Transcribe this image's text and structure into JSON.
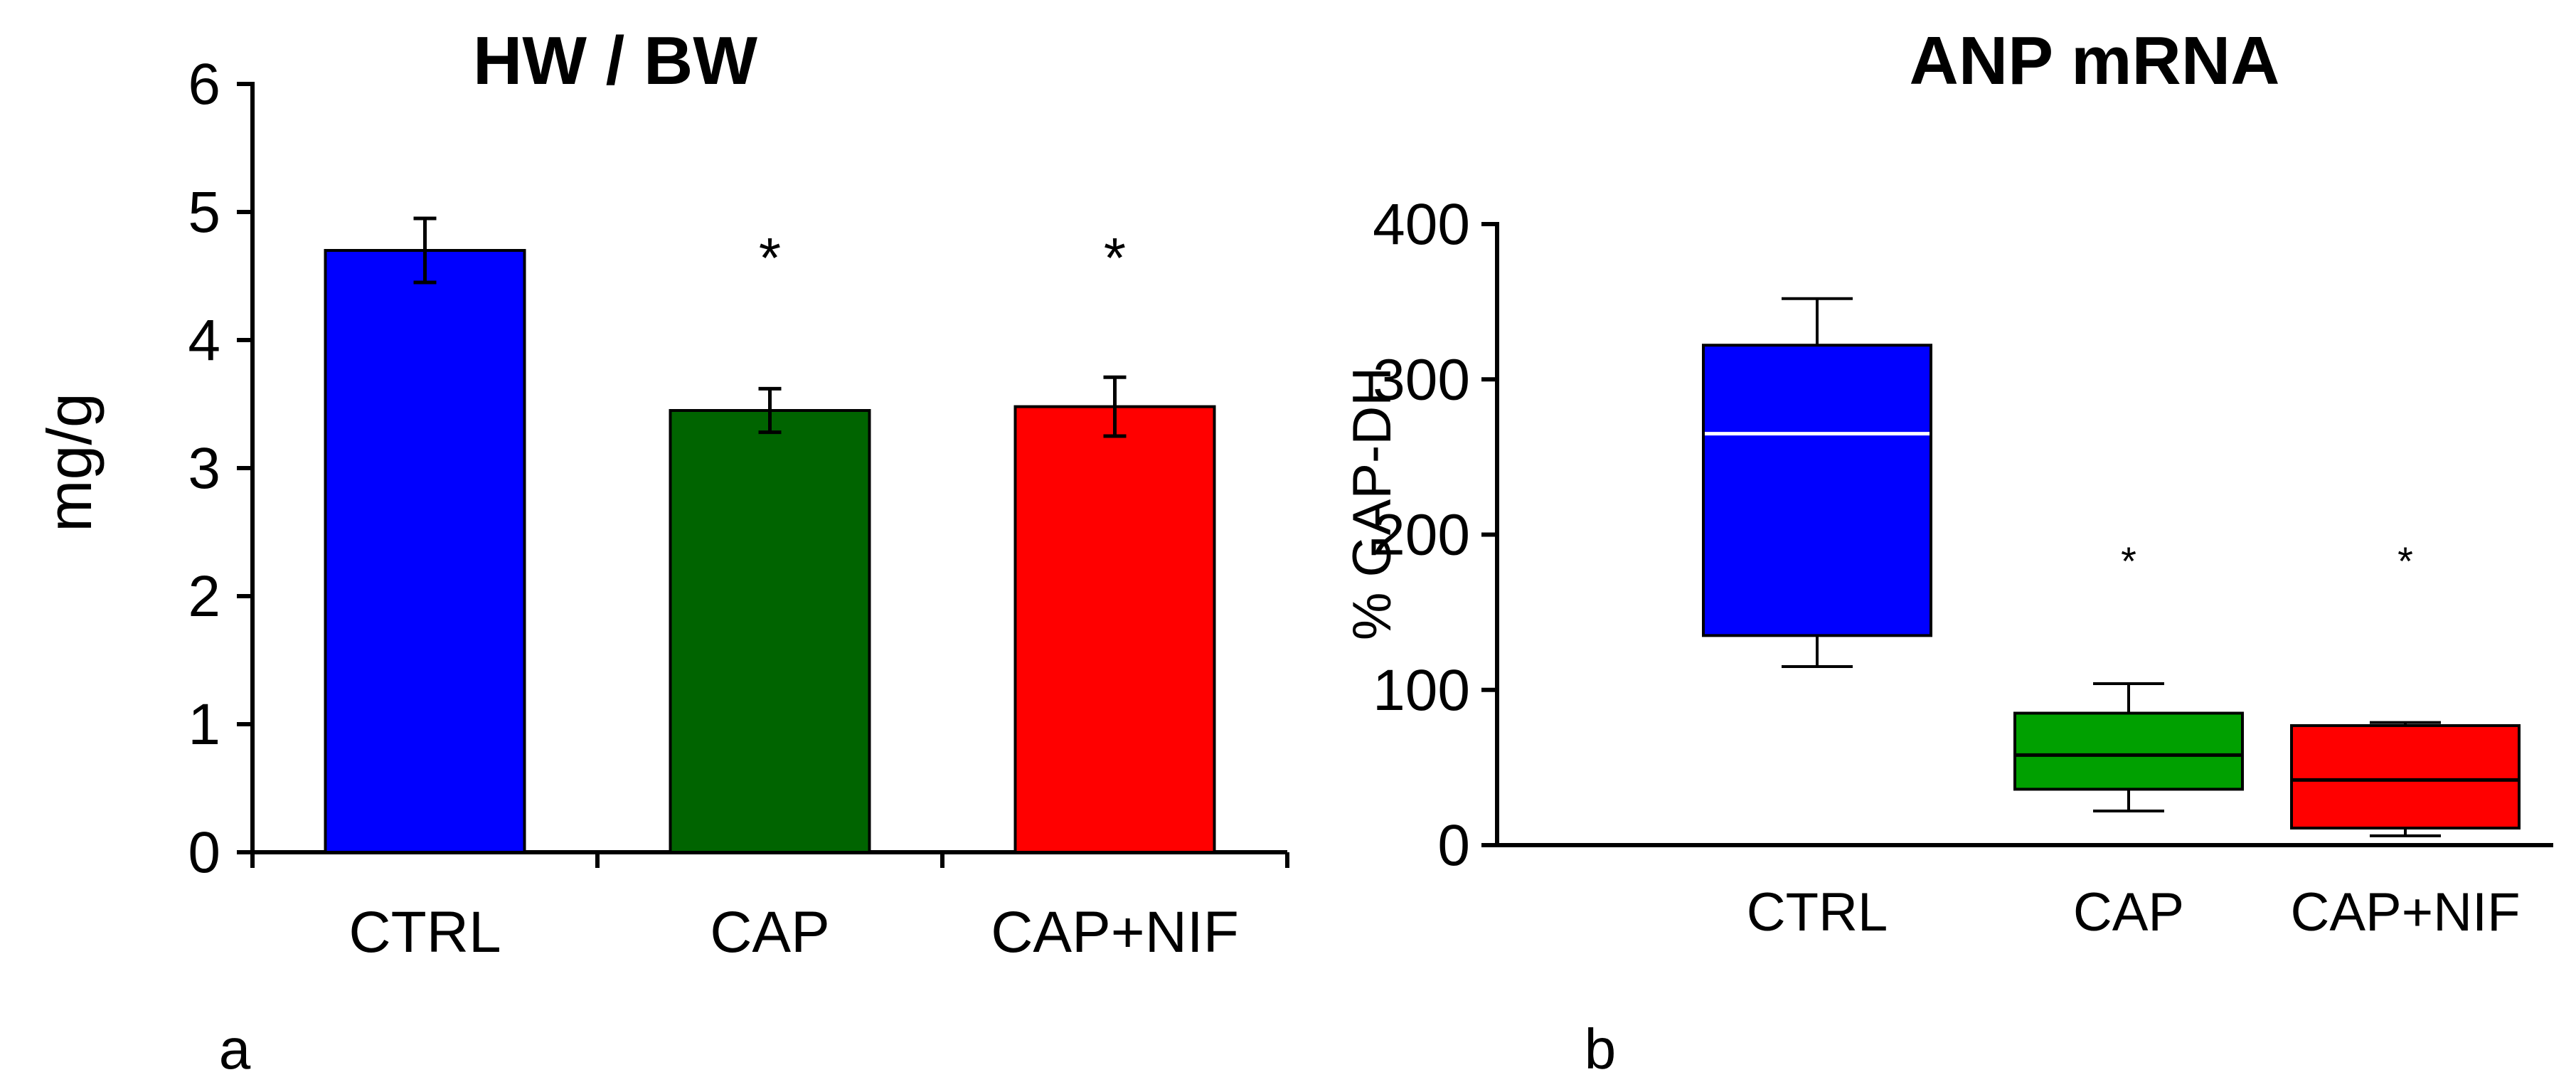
{
  "chart_data": [
    {
      "type": "bar",
      "title": "HW / BW",
      "panel_label": "a",
      "xlabel": "",
      "ylabel": "mg/g",
      "ylim": [
        0,
        6
      ],
      "yticks": [
        "0",
        "1",
        "2",
        "3",
        "4",
        "5",
        "6"
      ],
      "categories": [
        "CTRL",
        "CAP",
        "CAP+NIF"
      ],
      "values": [
        4.7,
        3.45,
        3.48
      ],
      "errors": [
        0.25,
        0.17,
        0.23
      ],
      "colors": [
        "#0000ff",
        "#006400",
        "#ff0000"
      ],
      "annotations": [
        "",
        "*",
        "*"
      ],
      "grid": false
    },
    {
      "type": "boxplot",
      "title": "ANP mRNA",
      "panel_label": "b",
      "xlabel": "",
      "ylabel": "% GAP-DH",
      "ylim": [
        0,
        400
      ],
      "yticks": [
        "0",
        "100",
        "200",
        "300",
        "400"
      ],
      "categories": [
        "CTRL",
        "CAP",
        "CAP+NIF"
      ],
      "boxes": [
        {
          "min": 115,
          "q1": 135,
          "median": 265,
          "q3": 322,
          "max": 352
        },
        {
          "min": 22,
          "q1": 36,
          "median": 58,
          "q3": 85,
          "max": 104
        },
        {
          "min": 6,
          "q1": 11,
          "median": 42,
          "q3": 77,
          "max": 79
        }
      ],
      "colors": [
        "#0000ff",
        "#00a000",
        "#ff0000"
      ],
      "median_colors": [
        "#ffffff",
        "#000000",
        "#000000"
      ],
      "annotations": [
        "",
        "*",
        "*"
      ],
      "grid": false
    }
  ]
}
